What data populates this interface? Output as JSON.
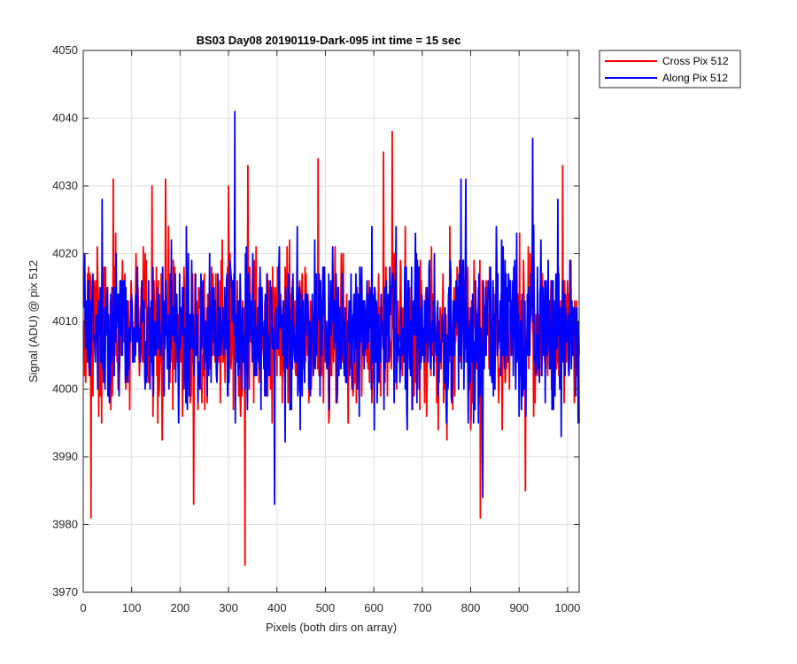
{
  "chart_data": {
    "type": "line",
    "title": "BS03 Day08 20190119-Dark-095 int time = 15 sec",
    "xlabel": "Pixels (both dirs on array)",
    "ylabel": "Signal (ADU) @ pix 512",
    "xlim": [
      0,
      1024
    ],
    "ylim": [
      3970,
      4050
    ],
    "xticks": [
      0,
      100,
      200,
      300,
      400,
      500,
      600,
      700,
      800,
      900,
      1000
    ],
    "yticks": [
      3970,
      3980,
      3990,
      4000,
      4010,
      4020,
      4030,
      4040,
      4050
    ],
    "grid": true,
    "legend_position": "outside-top-right",
    "x": {
      "start": 1,
      "end": 1024,
      "step": 1
    },
    "series": [
      {
        "name": "Cross Pix 512",
        "color": "#ff0000",
        "mean": 4008.5,
        "spread": 7.8,
        "seed": 512,
        "extremes": [
          {
            "x": 16,
            "y": 3981
          },
          {
            "x": 62,
            "y": 4031
          },
          {
            "x": 142,
            "y": 4030
          },
          {
            "x": 170,
            "y": 4031
          },
          {
            "x": 228,
            "y": 3983
          },
          {
            "x": 300,
            "y": 4030
          },
          {
            "x": 334,
            "y": 3974
          },
          {
            "x": 340,
            "y": 4033
          },
          {
            "x": 485,
            "y": 4034
          },
          {
            "x": 620,
            "y": 4035
          },
          {
            "x": 638,
            "y": 4038
          },
          {
            "x": 820,
            "y": 3981
          },
          {
            "x": 913,
            "y": 3985
          },
          {
            "x": 990,
            "y": 4033
          }
        ]
      },
      {
        "name": "Along Pix 512",
        "color": "#0000ff",
        "mean": 4008.2,
        "spread": 7.4,
        "seed": 1024,
        "extremes": [
          {
            "x": 39,
            "y": 4028
          },
          {
            "x": 313,
            "y": 4041
          },
          {
            "x": 395,
            "y": 3983
          },
          {
            "x": 780,
            "y": 4031
          },
          {
            "x": 790,
            "y": 4031
          },
          {
            "x": 825,
            "y": 3984
          },
          {
            "x": 928,
            "y": 4037
          },
          {
            "x": 980,
            "y": 4028
          }
        ]
      }
    ]
  }
}
